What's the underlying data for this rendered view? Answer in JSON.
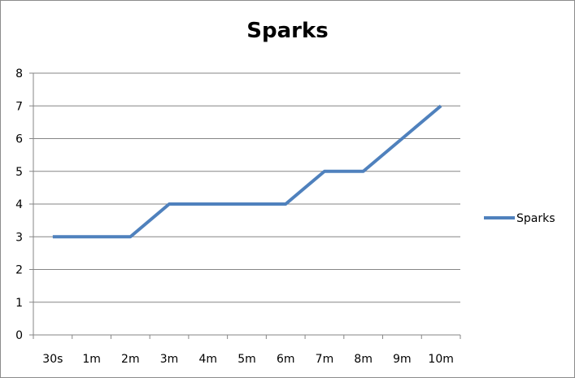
{
  "chart_data": {
    "type": "line",
    "title": "Sparks",
    "categories": [
      "30s",
      "1m",
      "2m",
      "3m",
      "4m",
      "5m",
      "6m",
      "7m",
      "8m",
      "9m",
      "10m"
    ],
    "series": [
      {
        "name": "Sparks",
        "values": [
          3,
          3,
          3,
          4,
          4,
          4,
          4,
          5,
          5,
          6,
          7
        ],
        "color": "#4f81bd"
      }
    ],
    "ylim": [
      0,
      8
    ],
    "yticks": [
      0,
      1,
      2,
      3,
      4,
      5,
      6,
      7,
      8
    ],
    "grid": true,
    "legend": "right"
  }
}
